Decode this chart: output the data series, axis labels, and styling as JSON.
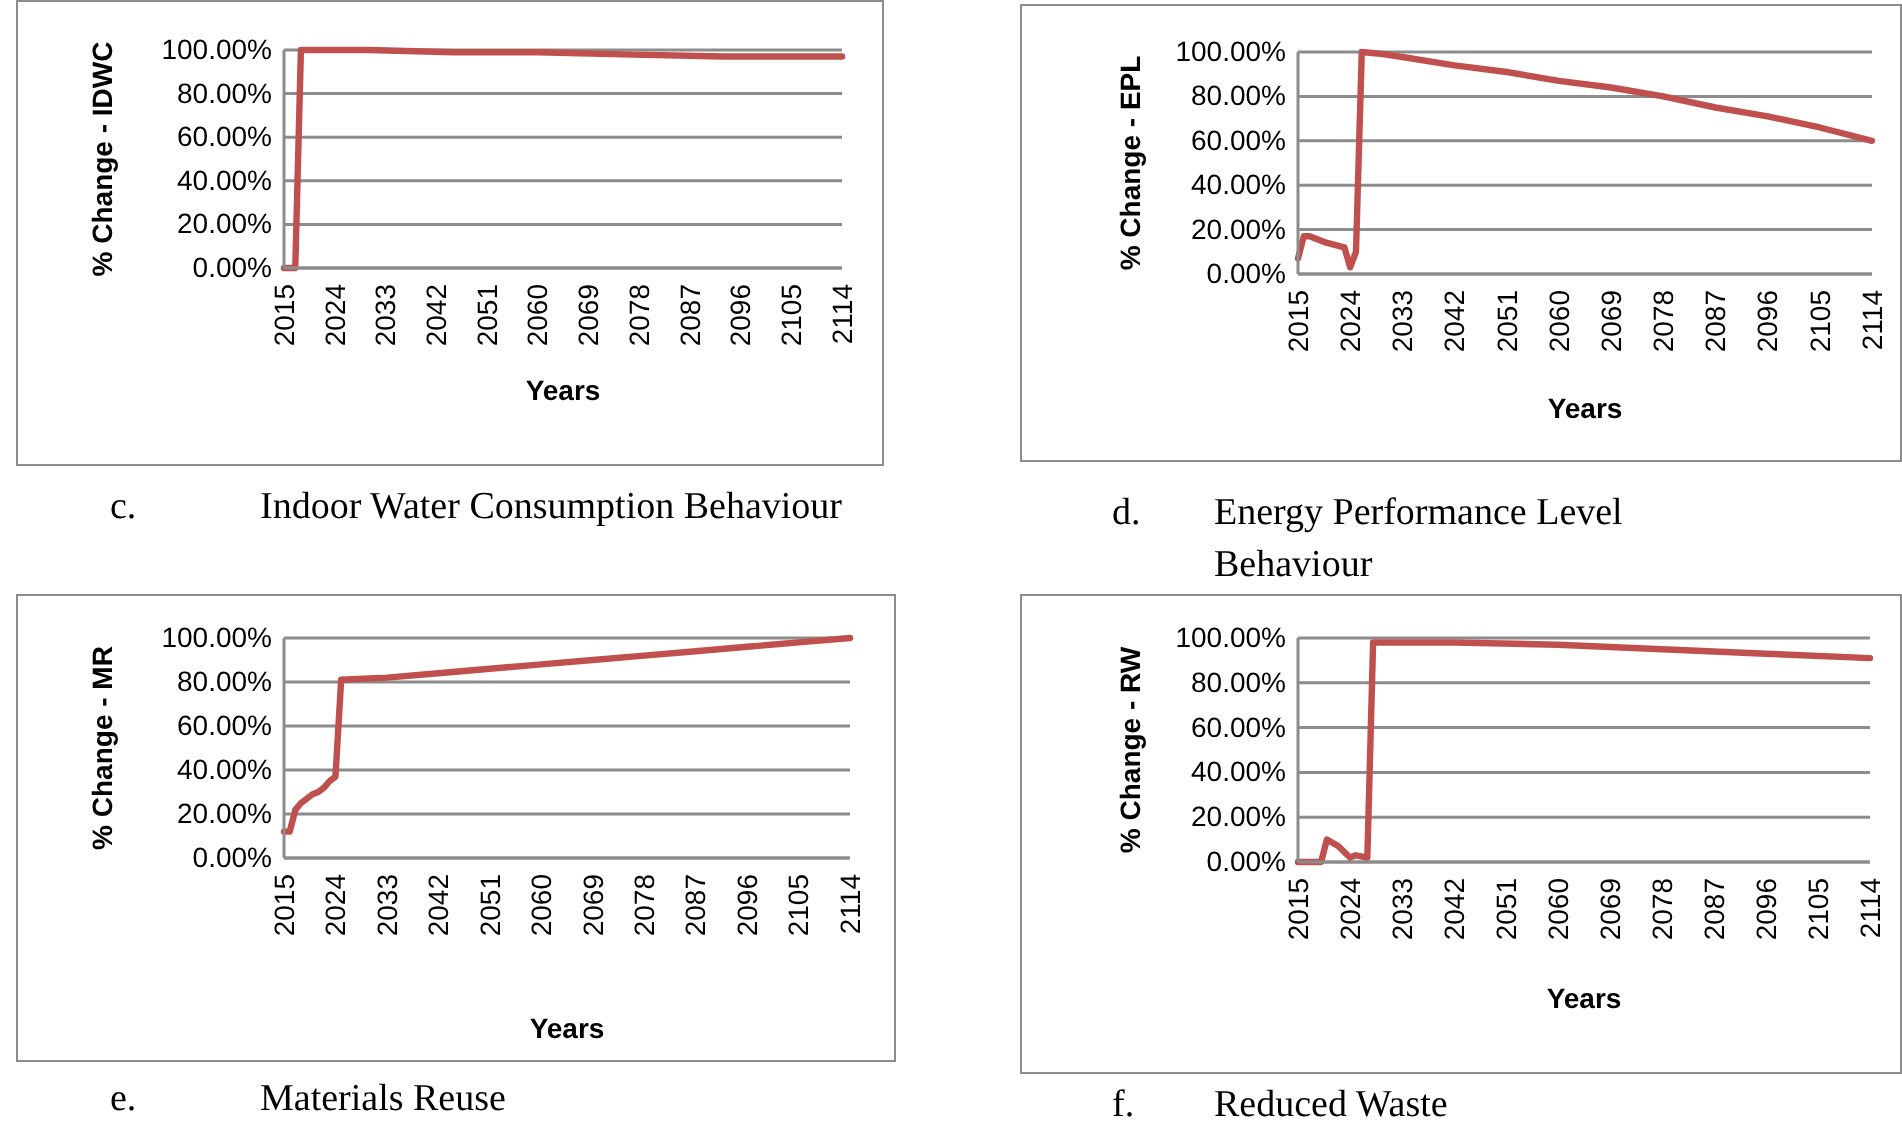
{
  "chart_data": [
    {
      "type": "line",
      "title": "c. Indoor Water Consumption Behaviour",
      "xlabel": "Years",
      "ylabel": "% Change - IDWC",
      "color": "#c0504d",
      "x": [
        2015,
        2016,
        2017,
        2018,
        2030,
        2045,
        2060,
        2075,
        2093,
        2114
      ],
      "values": [
        0,
        0,
        0,
        100,
        100,
        99,
        99,
        98,
        97,
        97
      ],
      "xlim": [
        2015,
        2114
      ],
      "xticks": [
        2015,
        2024,
        2033,
        2042,
        2051,
        2060,
        2069,
        2078,
        2087,
        2096,
        2105,
        2114
      ],
      "ylim": [
        0,
        100
      ],
      "yticks": [
        {
          "value": 0,
          "label": "0.00%"
        },
        {
          "value": 20,
          "label": "20.00%"
        },
        {
          "value": 40,
          "label": "40.00%"
        },
        {
          "value": 60,
          "label": "60.00%"
        },
        {
          "value": 80,
          "label": "80.00%"
        },
        {
          "value": 100,
          "label": "100.00%"
        }
      ],
      "grid": "y"
    },
    {
      "type": "line",
      "title": "d. Energy Performance Level Behaviour",
      "xlabel": "Years",
      "ylabel": "% Change - EPL",
      "color": "#c0504d",
      "x": [
        2015,
        2016,
        2017,
        2020,
        2023,
        2024,
        2025,
        2026,
        2030,
        2042,
        2051,
        2060,
        2069,
        2078,
        2087,
        2096,
        2105,
        2114
      ],
      "values": [
        7,
        17,
        17,
        14,
        12,
        3,
        10,
        100,
        99,
        94,
        91,
        87,
        84,
        80,
        75,
        71,
        66,
        60
      ],
      "xlim": [
        2015,
        2114
      ],
      "xticks": [
        2015,
        2024,
        2033,
        2042,
        2051,
        2060,
        2069,
        2078,
        2087,
        2096,
        2105,
        2114
      ],
      "ylim": [
        0,
        100
      ],
      "yticks": [
        {
          "value": 0,
          "label": "0.00%"
        },
        {
          "value": 20,
          "label": "20.00%"
        },
        {
          "value": 40,
          "label": "40.00%"
        },
        {
          "value": 60,
          "label": "60.00%"
        },
        {
          "value": 80,
          "label": "80.00%"
        },
        {
          "value": 100,
          "label": "100.00%"
        }
      ],
      "grid": "y"
    },
    {
      "type": "line",
      "title": "e. Materials Reuse",
      "xlabel": "Years",
      "ylabel": "% Change - MR",
      "color": "#c0504d",
      "x": [
        2015,
        2016,
        2017,
        2018,
        2020,
        2021,
        2022,
        2023,
        2024,
        2025,
        2033,
        2042,
        2051,
        2060,
        2069,
        2078,
        2087,
        2096,
        2105,
        2114
      ],
      "values": [
        12,
        12,
        22,
        25,
        29,
        30,
        32,
        35,
        37,
        81,
        82,
        84,
        86,
        88,
        90,
        92,
        94,
        96,
        98,
        100
      ],
      "xlim": [
        2015,
        2114
      ],
      "xticks": [
        2015,
        2024,
        2033,
        2042,
        2051,
        2060,
        2069,
        2078,
        2087,
        2096,
        2105,
        2114
      ],
      "ylim": [
        0,
        100
      ],
      "yticks": [
        {
          "value": 0,
          "label": "0.00%"
        },
        {
          "value": 20,
          "label": "20.00%"
        },
        {
          "value": 40,
          "label": "40.00%"
        },
        {
          "value": 60,
          "label": "60.00%"
        },
        {
          "value": 80,
          "label": "80.00%"
        },
        {
          "value": 100,
          "label": "100.00%"
        }
      ],
      "grid": "y"
    },
    {
      "type": "line",
      "title": "f. Reduced Waste",
      "xlabel": "Years",
      "ylabel": "% Change - RW",
      "color": "#c0504d",
      "x": [
        2015,
        2019,
        2020,
        2022,
        2024,
        2025,
        2027,
        2028,
        2042,
        2060,
        2078,
        2096,
        2114
      ],
      "values": [
        0,
        0,
        10,
        7,
        2,
        3,
        2,
        98,
        98,
        97,
        95,
        93,
        91
      ],
      "xlim": [
        2015,
        2114
      ],
      "xticks": [
        2015,
        2024,
        2033,
        2042,
        2051,
        2060,
        2069,
        2078,
        2087,
        2096,
        2105,
        2114
      ],
      "ylim": [
        0,
        100
      ],
      "yticks": [
        {
          "value": 0,
          "label": "0.00%"
        },
        {
          "value": 20,
          "label": "20.00%"
        },
        {
          "value": 40,
          "label": "40.00%"
        },
        {
          "value": 60,
          "label": "60.00%"
        },
        {
          "value": 80,
          "label": "80.00%"
        },
        {
          "value": 100,
          "label": "100.00%"
        }
      ],
      "grid": "y"
    }
  ]
}
